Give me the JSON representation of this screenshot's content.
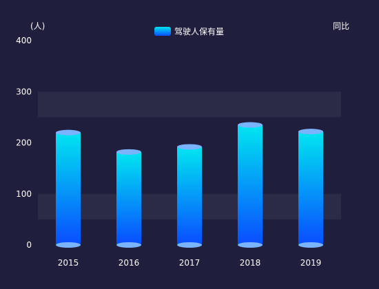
{
  "chart_data": {
    "type": "bar",
    "categories": [
      "2015",
      "2016",
      "2017",
      "2018",
      "2019"
    ],
    "series": [
      {
        "name": "驾驶人保有量",
        "values": [
          220,
          182,
          192,
          235,
          222
        ]
      }
    ],
    "ylim": [
      0,
      400
    ],
    "yticks": [
      0,
      100,
      200,
      300,
      400
    ],
    "y_unit_label": "(人)",
    "y2_label": "同比",
    "legend": {
      "entries": [
        "驾驶人保有量"
      ],
      "placement": "top-center"
    },
    "grid": "alternating horizontal bands"
  },
  "colors": {
    "background": "#1f1f3d",
    "band": "#2b2b47",
    "bar_top": "#00e6f0",
    "bar_bottom": "#0a4cff",
    "cap": "#7ab3ff",
    "text": "#ffffff"
  }
}
